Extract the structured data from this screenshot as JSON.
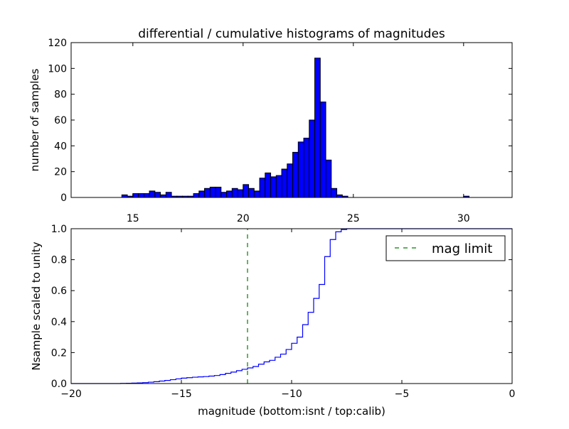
{
  "chart_data": [
    {
      "type": "bar",
      "title": "differential / cumulative histograms of magnitudes",
      "xlabel": "",
      "ylabel": "number of samples",
      "xlim": [
        12.2,
        32.2
      ],
      "ylim": [
        0,
        120
      ],
      "xticks": [
        15,
        20,
        25,
        30
      ],
      "yticks": [
        0,
        20,
        40,
        60,
        80,
        100,
        120
      ],
      "color": "#0000ff",
      "bin_width": 0.25,
      "bins": [
        {
          "x": 14.5,
          "count": 2
        },
        {
          "x": 14.75,
          "count": 1
        },
        {
          "x": 15.0,
          "count": 3
        },
        {
          "x": 15.25,
          "count": 3
        },
        {
          "x": 15.5,
          "count": 3
        },
        {
          "x": 15.75,
          "count": 5
        },
        {
          "x": 16.0,
          "count": 4
        },
        {
          "x": 16.25,
          "count": 2
        },
        {
          "x": 16.5,
          "count": 4
        },
        {
          "x": 16.75,
          "count": 1
        },
        {
          "x": 17.0,
          "count": 1
        },
        {
          "x": 17.25,
          "count": 1
        },
        {
          "x": 17.5,
          "count": 1
        },
        {
          "x": 17.75,
          "count": 3
        },
        {
          "x": 18.0,
          "count": 5
        },
        {
          "x": 18.25,
          "count": 7
        },
        {
          "x": 18.5,
          "count": 8
        },
        {
          "x": 18.75,
          "count": 8
        },
        {
          "x": 19.0,
          "count": 4
        },
        {
          "x": 19.25,
          "count": 5
        },
        {
          "x": 19.5,
          "count": 7
        },
        {
          "x": 19.75,
          "count": 6
        },
        {
          "x": 20.0,
          "count": 10
        },
        {
          "x": 20.25,
          "count": 7
        },
        {
          "x": 20.5,
          "count": 5
        },
        {
          "x": 20.75,
          "count": 15
        },
        {
          "x": 21.0,
          "count": 19
        },
        {
          "x": 21.25,
          "count": 16
        },
        {
          "x": 21.5,
          "count": 17
        },
        {
          "x": 21.75,
          "count": 22
        },
        {
          "x": 22.0,
          "count": 26
        },
        {
          "x": 22.25,
          "count": 35
        },
        {
          "x": 22.5,
          "count": 43
        },
        {
          "x": 22.75,
          "count": 46
        },
        {
          "x": 23.0,
          "count": 60
        },
        {
          "x": 23.25,
          "count": 108
        },
        {
          "x": 23.5,
          "count": 74
        },
        {
          "x": 23.75,
          "count": 29
        },
        {
          "x": 24.0,
          "count": 7
        },
        {
          "x": 24.25,
          "count": 2
        },
        {
          "x": 24.5,
          "count": 1
        },
        {
          "x": 30.0,
          "count": 1
        }
      ]
    },
    {
      "type": "line",
      "step": true,
      "xlabel": "magnitude (bottom:isnt / top:calib)",
      "ylabel": "Nsample scaled to unity",
      "xlim": [
        -20,
        0
      ],
      "ylim": [
        0.0,
        1.0
      ],
      "xticks": [
        -20,
        -15,
        -10,
        -5,
        0
      ],
      "xtick_labels": [
        "−20",
        "−15",
        "−10",
        "−5",
        "0"
      ],
      "yticks": [
        0.0,
        0.2,
        0.4,
        0.6,
        0.8,
        1.0
      ],
      "ytick_labels": [
        "0.0",
        "0.2",
        "0.4",
        "0.6",
        "0.8",
        "1.0"
      ],
      "series": [
        {
          "color": "#0000ff",
          "x": [
            -20.0,
            -17.75,
            -17.5,
            -17.25,
            -17.0,
            -16.75,
            -16.5,
            -16.25,
            -16.0,
            -15.75,
            -15.5,
            -15.25,
            -15.0,
            -14.75,
            -14.5,
            -14.25,
            -14.0,
            -13.75,
            -13.5,
            -13.25,
            -13.0,
            -12.75,
            -12.5,
            -12.25,
            -12.0,
            -11.75,
            -11.5,
            -11.25,
            -11.0,
            -10.75,
            -10.5,
            -10.25,
            -10.0,
            -9.75,
            -9.5,
            -9.25,
            -9.0,
            -8.75,
            -8.5,
            -8.25,
            -8.0,
            -7.75,
            -7.5,
            0.0
          ],
          "y": [
            0.0,
            0.001,
            0.002,
            0.003,
            0.004,
            0.006,
            0.009,
            0.012,
            0.016,
            0.02,
            0.025,
            0.03,
            0.035,
            0.038,
            0.041,
            0.043,
            0.045,
            0.048,
            0.052,
            0.058,
            0.066,
            0.074,
            0.083,
            0.092,
            0.101,
            0.11,
            0.125,
            0.14,
            0.15,
            0.17,
            0.19,
            0.22,
            0.26,
            0.3,
            0.38,
            0.46,
            0.55,
            0.64,
            0.82,
            0.93,
            0.98,
            0.995,
            1.0,
            1.0
          ]
        },
        {
          "name": "mag limit",
          "color": "#007f00",
          "style": "dashed",
          "x": [
            -12,
            -12
          ],
          "y": [
            0.0,
            1.0
          ]
        }
      ],
      "legend": {
        "position": "top-right",
        "entries": [
          "mag limit"
        ]
      }
    }
  ]
}
